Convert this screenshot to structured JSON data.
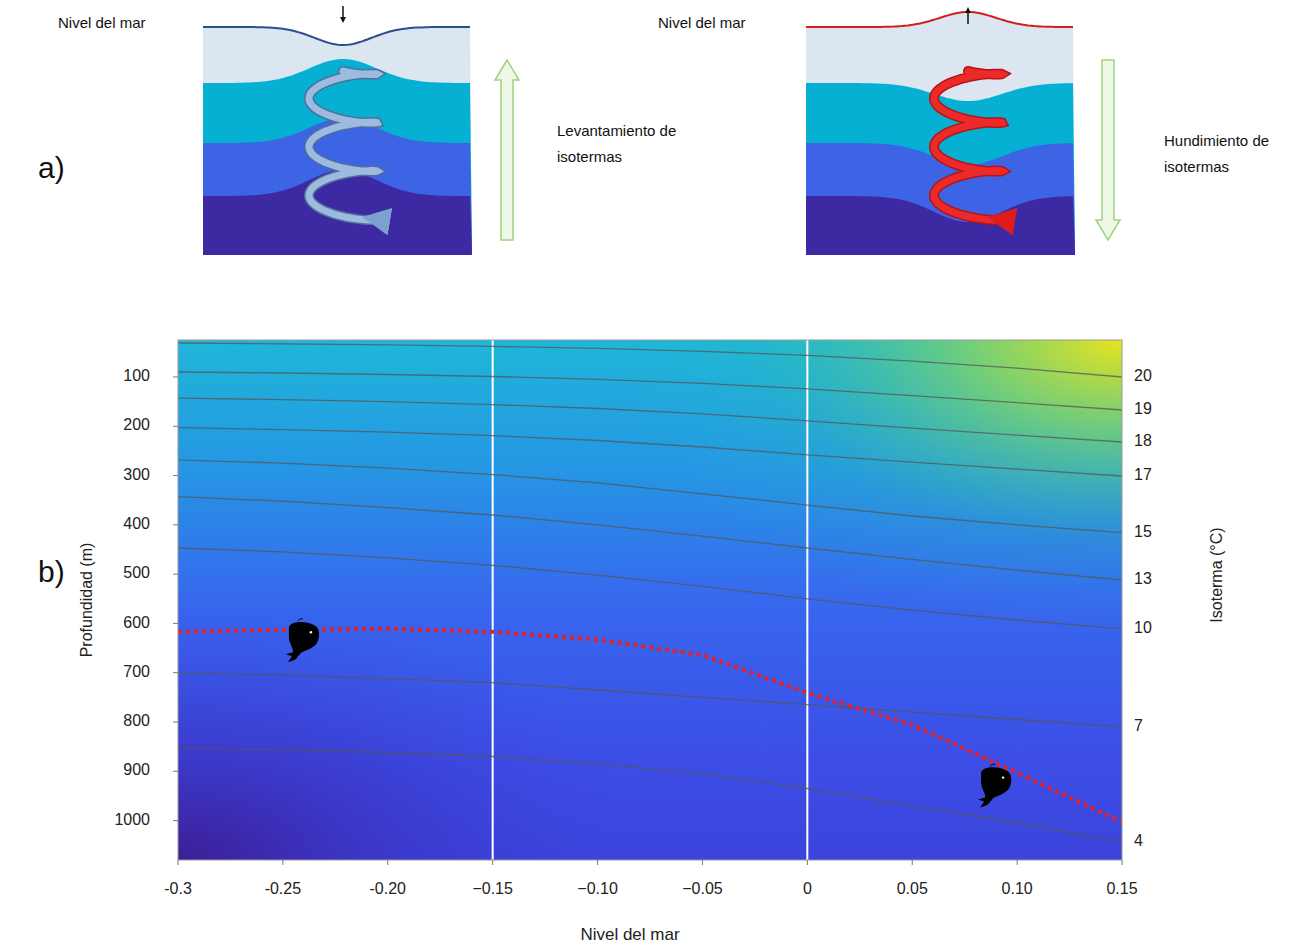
{
  "panel_a": {
    "label": "a)",
    "left": {
      "sea_level": "Nivel del mar",
      "caption": [
        "Levantamiento de",
        "isotermas"
      ]
    },
    "right": {
      "sea_level": "Nivel del mar",
      "caption": [
        "Hundimiento de",
        "isotermas"
      ]
    }
  },
  "chart_data": {
    "type": "line",
    "panel_label": "b)",
    "x_label": "Nivel del mar",
    "y_label": "Profundidad (m)",
    "y2_label": "Isoterma (°C)",
    "x": [
      -0.3,
      -0.25,
      -0.2,
      -0.15,
      -0.1,
      -0.05,
      0,
      0.05,
      0.1,
      0.15
    ],
    "xlim": [
      -0.3,
      0.15
    ],
    "xticks": [
      -0.3,
      -0.25,
      {
        "value": -0.2,
        "label": "-0.20"
      },
      {
        "value": -0.15,
        "label": "−0.15"
      },
      {
        "value": -0.1,
        "label": "−0.10"
      },
      {
        "value": -0.05,
        "label": "−0.05"
      },
      0,
      0.05,
      {
        "value": 0.1,
        "label": "0.10"
      },
      0.15
    ],
    "ylim": [
      1080,
      25
    ],
    "yticks": [
      100,
      200,
      300,
      400,
      500,
      600,
      700,
      800,
      900,
      1000
    ],
    "vlines": [
      -0.15,
      0
    ],
    "series": [
      {
        "name": "20",
        "color": "#555555",
        "line_style": "solid",
        "values": [
          31,
          33,
          35,
          38,
          42,
          48,
          56,
          68,
          82,
          100
        ]
      },
      {
        "name": "19",
        "color": "#555555",
        "line_style": "solid",
        "values": [
          90,
          92,
          95,
          99,
          105,
          113,
          124,
          138,
          152,
          167
        ]
      },
      {
        "name": "18",
        "color": "#555555",
        "line_style": "solid",
        "values": [
          143,
          146,
          150,
          156,
          164,
          175,
          189,
          204,
          218,
          232
        ]
      },
      {
        "name": "17",
        "color": "#555555",
        "line_style": "solid",
        "values": [
          203,
          207,
          212,
          219,
          229,
          242,
          258,
          273,
          287,
          301
        ]
      },
      {
        "name": "15",
        "color": "#555555",
        "line_style": "solid",
        "values": [
          268,
          275,
          285,
          298,
          315,
          337,
          360,
          382,
          400,
          416
        ]
      },
      {
        "name": "13",
        "color": "#555555",
        "line_style": "solid",
        "values": [
          343,
          352,
          365,
          380,
          400,
          423,
          447,
          470,
          492,
          512
        ]
      },
      {
        "name": "10",
        "color": "#555555",
        "line_style": "solid",
        "values": [
          447,
          455,
          467,
          482,
          502,
          525,
          550,
          573,
          593,
          611
        ]
      },
      {
        "name": "7",
        "color": "#555555",
        "line_style": "solid",
        "values": [
          700,
          705,
          712,
          720,
          735,
          750,
          765,
          780,
          795,
          810
        ]
      },
      {
        "name": "4",
        "color": "#555555",
        "line_style": "solid",
        "values": [
          852,
          856,
          862,
          870,
          885,
          905,
          935,
          970,
          1005,
          1043
        ]
      },
      {
        "color": "#e3212b",
        "line_style": "dotted",
        "values": [
          617,
          613,
          611,
          617,
          633,
          664,
          741,
          806,
          903,
          1003
        ]
      },
      {
        "type": "scatter",
        "marker": "whale",
        "color": "#000000",
        "x": [
          -0.24,
          0.09
        ],
        "values": [
          630,
          925
        ]
      }
    ]
  }
}
